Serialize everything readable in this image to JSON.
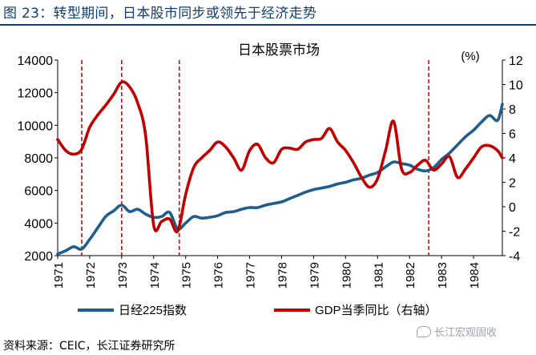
{
  "figure_title": "图 23：转型期间，日本股市同步或领先于经济走势",
  "source": "资料来源：CEIC，长江证券研究所",
  "watermark": "长江宏观固收",
  "colors": {
    "nikkei": "#1e5d8c",
    "gdp": "#c00000",
    "vline": "#e00000",
    "title": "#0f3e72"
  },
  "chart_data": {
    "type": "line",
    "title": "日本股票市场",
    "ylabel_right": "(%)",
    "ylim_left": [
      2000,
      14000
    ],
    "yticks_left": [
      2000,
      4000,
      6000,
      8000,
      10000,
      12000,
      14000
    ],
    "ylim_right": [
      -4,
      12
    ],
    "yticks_right": [
      -4,
      -2,
      0,
      2,
      4,
      6,
      8,
      10,
      12
    ],
    "xlim": [
      1971.0,
      1984.9
    ],
    "xticks": [
      "1971",
      "1972",
      "1973",
      "1974",
      "1975",
      "1976",
      "1977",
      "1978",
      "1979",
      "1980",
      "1981",
      "1982",
      "1983",
      "1984"
    ],
    "vlines": [
      1971.75,
      1973.0,
      1974.8,
      1982.6
    ],
    "series": [
      {
        "name": "日经225指数",
        "axis": "left",
        "x": [
          1971.0,
          1971.25,
          1971.5,
          1971.75,
          1972.0,
          1972.25,
          1972.5,
          1972.75,
          1973.0,
          1973.25,
          1973.5,
          1973.75,
          1974.0,
          1974.25,
          1974.5,
          1974.75,
          1975.0,
          1975.25,
          1975.5,
          1975.75,
          1976.0,
          1976.25,
          1976.5,
          1976.75,
          1977.0,
          1977.25,
          1977.5,
          1977.75,
          1978.0,
          1978.25,
          1978.5,
          1978.75,
          1979.0,
          1979.25,
          1979.5,
          1979.75,
          1980.0,
          1980.25,
          1980.5,
          1980.75,
          1981.0,
          1981.25,
          1981.5,
          1981.75,
          1982.0,
          1982.25,
          1982.5,
          1982.75,
          1983.0,
          1983.25,
          1983.5,
          1983.75,
          1984.0,
          1984.25,
          1984.5,
          1984.75,
          1984.9
        ],
        "values": [
          2100,
          2300,
          2550,
          2400,
          3000,
          3700,
          4400,
          4750,
          5100,
          4700,
          4850,
          4550,
          4350,
          4400,
          4650,
          3650,
          4000,
          4400,
          4300,
          4350,
          4450,
          4650,
          4700,
          4850,
          4950,
          4950,
          5100,
          5200,
          5300,
          5500,
          5700,
          5900,
          6050,
          6150,
          6250,
          6400,
          6500,
          6650,
          6750,
          6950,
          7100,
          7450,
          7750,
          7650,
          7550,
          7300,
          7200,
          7400,
          7900,
          8300,
          8800,
          9300,
          9700,
          10200,
          10600,
          10300,
          11300
        ]
      },
      {
        "name": "GDP当季同比（右轴）",
        "axis": "right",
        "x": [
          1971.0,
          1971.25,
          1971.5,
          1971.75,
          1972.0,
          1972.25,
          1972.5,
          1972.75,
          1973.0,
          1973.25,
          1973.5,
          1973.75,
          1974.0,
          1974.25,
          1974.5,
          1974.75,
          1975.0,
          1975.25,
          1975.5,
          1975.75,
          1976.0,
          1976.25,
          1976.5,
          1976.75,
          1977.0,
          1977.25,
          1977.5,
          1977.75,
          1978.0,
          1978.25,
          1978.5,
          1978.75,
          1979.0,
          1979.25,
          1979.5,
          1979.75,
          1980.0,
          1980.25,
          1980.5,
          1980.75,
          1981.0,
          1981.25,
          1981.5,
          1981.75,
          1982.0,
          1982.25,
          1982.5,
          1982.75,
          1983.0,
          1983.25,
          1983.5,
          1983.75,
          1984.0,
          1984.25,
          1984.5,
          1984.75,
          1984.9
        ],
        "values": [
          5.5,
          4.6,
          4.3,
          4.7,
          6.5,
          7.5,
          8.3,
          9.2,
          10.2,
          9.8,
          8.5,
          5.8,
          -1.5,
          -1.2,
          -1.0,
          -2.0,
          1.0,
          3.2,
          4.0,
          4.6,
          5.3,
          4.9,
          4.0,
          3.0,
          4.6,
          5.1,
          4.0,
          3.6,
          4.7,
          4.8,
          4.7,
          5.3,
          5.5,
          5.6,
          6.4,
          5.3,
          4.6,
          3.6,
          2.4,
          1.6,
          2.3,
          4.6,
          7.0,
          3.1,
          2.8,
          3.4,
          3.8,
          3.0,
          3.5,
          4.1,
          2.4,
          3.1,
          4.0,
          4.9,
          5.0,
          4.6,
          4.0
        ]
      }
    ],
    "legend_position": "bottom"
  }
}
